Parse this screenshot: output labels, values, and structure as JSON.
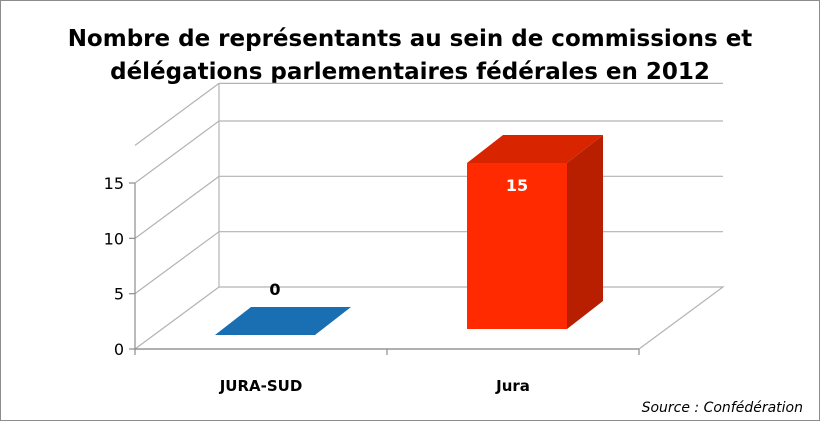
{
  "chart_data": {
    "type": "bar",
    "title_lines": [
      "Nombre de représentants au sein de commissions et",
      "délégations parlementaires fédérales en 2012"
    ],
    "categories": [
      "JURA-SUD",
      "Jura"
    ],
    "values": [
      0,
      15
    ],
    "data_labels": [
      "0",
      "15"
    ],
    "ylim": [
      0,
      15
    ],
    "yticks": [
      "0",
      "5",
      "10",
      "15"
    ],
    "bar_colors": [
      "#1a6fb3",
      "#ff2a00"
    ],
    "grid": true,
    "three_d": true,
    "source": "Source : Confédération"
  }
}
